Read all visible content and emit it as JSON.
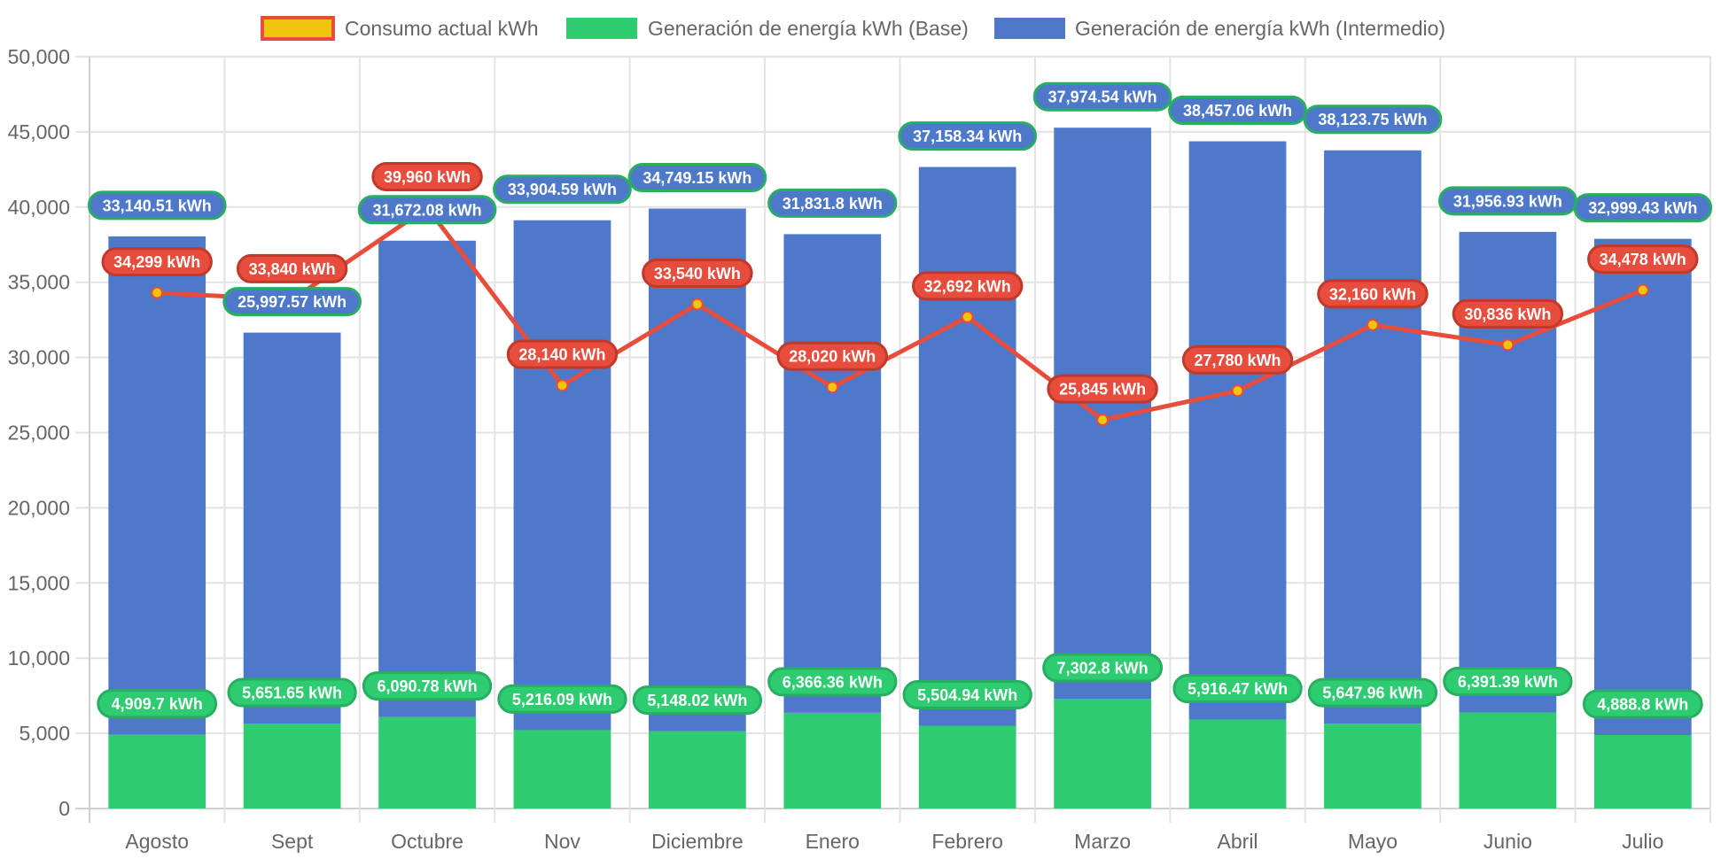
{
  "chart_data": {
    "type": "bar",
    "title": "",
    "xlabel": "",
    "ylabel": "",
    "ylim": [
      0,
      50000
    ],
    "ytick_step": 5000,
    "ytick_labels": [
      "0",
      "5,000",
      "10,000",
      "15,000",
      "20,000",
      "25,000",
      "30,000",
      "35,000",
      "40,000",
      "45,000",
      "50,000"
    ],
    "grid": true,
    "stacked": true,
    "legend_position": "top-center",
    "categories": [
      "Agosto",
      "Sept",
      "Octubre",
      "Nov",
      "Diciembre",
      "Enero",
      "Febrero",
      "Marzo",
      "Abril",
      "Mayo",
      "Junio",
      "Julio"
    ],
    "unit_suffix": " kWh",
    "series": [
      {
        "name": "Consumo actual kWh",
        "type": "line",
        "color": "#e74c3c",
        "point_color": "#f1c40f",
        "values": [
          34299,
          33840,
          39960,
          28140,
          33540,
          28020,
          32692,
          25845,
          27780,
          32160,
          30836,
          34478
        ],
        "labels": [
          "34,299 kWh",
          "33,840 kWh",
          "39,960 kWh",
          "28,140 kWh",
          "33,540 kWh",
          "28,020 kWh",
          "32,692 kWh",
          "25,845 kWh",
          "27,780 kWh",
          "32,160 kWh",
          "30,836 kWh",
          "34,478 kWh"
        ]
      },
      {
        "name": "Generación de energía kWh (Base)",
        "type": "bar",
        "color": "#2ecc71",
        "values": [
          4909.7,
          5651.65,
          6090.78,
          5216.09,
          5148.02,
          6366.36,
          5504.94,
          7302.8,
          5916.47,
          5647.96,
          6391.39,
          4888.8
        ],
        "labels": [
          "4,909.7 kWh",
          "5,651.65 kWh",
          "6,090.78 kWh",
          "5,216.09 kWh",
          "5,148.02 kWh",
          "6,366.36 kWh",
          "5,504.94 kWh",
          "7,302.8 kWh",
          "5,916.47 kWh",
          "5,647.96 kWh",
          "6,391.39 kWh",
          "4,888.8 kWh"
        ]
      },
      {
        "name": "Generación de energía kWh (Intermedio)",
        "type": "bar",
        "color": "#4e79cb",
        "values": [
          33140.51,
          25997.57,
          31672.08,
          33904.59,
          34749.15,
          31831.8,
          37158.34,
          37974.54,
          38457.06,
          38123.75,
          31956.93,
          32999.43
        ],
        "labels": [
          "33,140.51 kWh",
          "25,997.57 kWh",
          "31,672.08 kWh",
          "33,904.59 kWh",
          "34,749.15 kWh",
          "31,831.8 kWh",
          "37,158.34 kWh",
          "37,974.54 kWh",
          "38,457.06 kWh",
          "38,123.75 kWh",
          "31,956.93 kWh",
          "32,999.43 kWh"
        ]
      }
    ],
    "legend": [
      {
        "label": "Consumo actual kWh",
        "fill": "#f1c40f",
        "border": "#e74c3c"
      },
      {
        "label": "Generación de energía kWh (Base)",
        "fill": "#2ecc71",
        "border": "#2ecc71"
      },
      {
        "label": "Generación de energía kWh (Intermedio)",
        "fill": "#4e79cb",
        "border": "#4e79cb"
      }
    ]
  }
}
